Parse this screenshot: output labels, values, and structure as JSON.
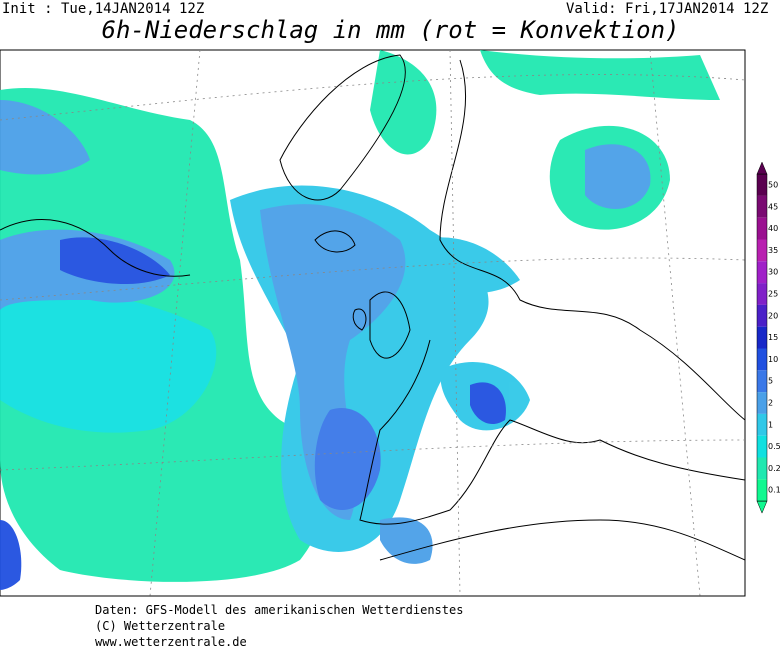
{
  "header": {
    "init": "Init : Tue,14JAN2014 12Z",
    "valid": "Valid: Fri,17JAN2014 12Z",
    "title": "6h-Niederschlag in mm (rot = Konvektion)"
  },
  "colorbar": {
    "levels": [
      50,
      45,
      40,
      35,
      30,
      25,
      20,
      15,
      10,
      5,
      2,
      1,
      0.5,
      0.2,
      0.1
    ],
    "colors": [
      "#5a0050",
      "#7a0a72",
      "#9a1090",
      "#b820b0",
      "#a020c8",
      "#8020c8",
      "#4a20c8",
      "#1828c8",
      "#2050e0",
      "#3a78e8",
      "#4aa0e8",
      "#30c8e8",
      "#10e0e0",
      "#20e8b0",
      "#10f890"
    ]
  },
  "footer": {
    "line1": "Daten: GFS-Modell des amerikanischen Wetterdienstes",
    "line2": "(C) Wetterzentrale",
    "line3": "www.wetterzentrale.de"
  }
}
